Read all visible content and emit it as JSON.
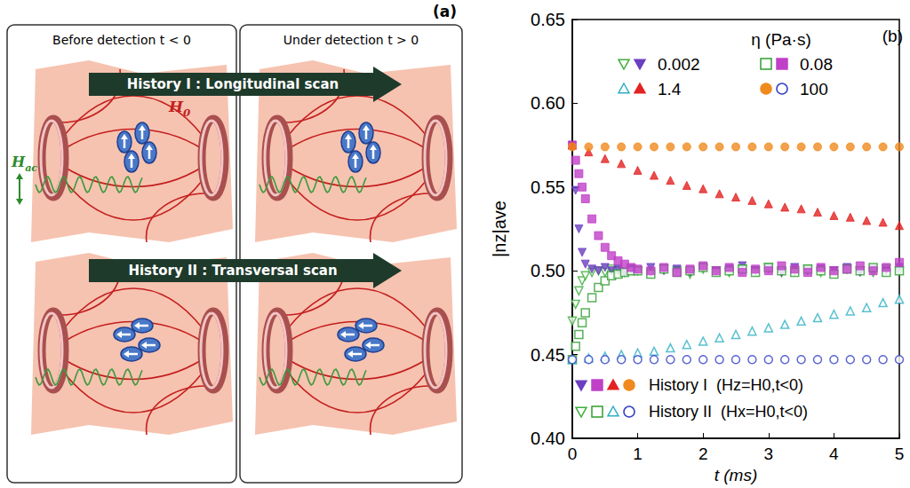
{
  "diagram": {
    "panel_label": "(a)",
    "columns": [
      "Before detection  t < 0",
      "Under detection  t > 0"
    ],
    "histories": [
      "History I : Longitudinal scan",
      "History II : Transversal scan"
    ],
    "field_labels": {
      "static": "H0",
      "ac": "Hac"
    }
  },
  "chart_data": {
    "type": "scatter",
    "panel_label": "(b)",
    "x_label": "t (ms)",
    "y_label": "|nz|ave",
    "legend_title": "η (Pa·s)",
    "xlim": [
      0,
      5
    ],
    "xticks": [
      0,
      1,
      2,
      3,
      4,
      5
    ],
    "ylim": [
      0.4,
      0.65
    ],
    "yticks": [
      {
        "value": 0.4,
        "label": "0.40"
      },
      0.45,
      {
        "value": 0.5,
        "label": "0.50"
      },
      0.55,
      {
        "value": 0.6,
        "label": "0.60"
      },
      0.65
    ],
    "grid": false,
    "groups": [
      {
        "name": "History I",
        "label": "History I  (Hz=H0,t<0)"
      },
      {
        "name": "History II",
        "label": "History II  (Hx=H0,t<0)"
      }
    ],
    "series": [
      {
        "name": "0.002",
        "group": "History II",
        "color": "#3cae3c",
        "marker": "open triangle-down",
        "x": [
          0,
          0.05,
          0.1,
          0.15,
          0.2,
          0.3,
          0.4,
          0.5,
          0.6,
          0.7,
          0.8,
          0.9,
          1,
          1.2,
          1.4,
          1.6,
          1.8,
          2,
          2.2,
          2.4,
          2.6,
          2.8,
          3,
          3.2,
          3.4,
          3.6,
          3.8,
          4,
          4.2,
          4.4,
          4.6,
          4.8,
          5
        ],
        "values": [
          0.47,
          0.48,
          0.488,
          0.494,
          0.497,
          0.499,
          0.5,
          0.499,
          0.501,
          0.5,
          0.499,
          0.501,
          0.5,
          0.499,
          0.501,
          0.5,
          0.498,
          0.501,
          0.5,
          0.499,
          0.501,
          0.5,
          0.502,
          0.499,
          0.5,
          0.501,
          0.499,
          0.5,
          0.501,
          0.5,
          0.499,
          0.501,
          0.5
        ]
      },
      {
        "name": "0.002",
        "group": "History I",
        "color": "#6a3fc0",
        "marker": "filled triangle-down",
        "x": [
          0,
          0.05,
          0.1,
          0.15,
          0.2,
          0.3,
          0.4,
          0.5,
          0.6,
          0.7,
          0.8,
          0.9,
          1,
          1.2,
          1.4,
          1.6,
          1.8,
          2,
          2.2,
          2.4,
          2.6,
          2.8,
          3,
          3.2,
          3.4,
          3.6,
          3.8,
          4,
          4.2,
          4.4,
          4.6,
          4.8,
          5
        ],
        "values": [
          0.575,
          0.548,
          0.525,
          0.511,
          0.504,
          0.501,
          0.5,
          0.502,
          0.5,
          0.501,
          0.499,
          0.501,
          0.5,
          0.502,
          0.5,
          0.501,
          0.499,
          0.502,
          0.5,
          0.501,
          0.503,
          0.5,
          0.501,
          0.499,
          0.502,
          0.5,
          0.501,
          0.5,
          0.502,
          0.499,
          0.501,
          0.5,
          0.502
        ]
      },
      {
        "name": "0.08",
        "group": "History II",
        "color": "#2f9e2f",
        "marker": "open square",
        "x": [
          0,
          0.05,
          0.1,
          0.15,
          0.2,
          0.3,
          0.4,
          0.5,
          0.6,
          0.7,
          0.8,
          0.9,
          1,
          1.2,
          1.4,
          1.6,
          1.8,
          2,
          2.2,
          2.4,
          2.6,
          2.8,
          3,
          3.2,
          3.4,
          3.6,
          3.8,
          4,
          4.2,
          4.4,
          4.6,
          4.8,
          5
        ],
        "values": [
          0.447,
          0.455,
          0.462,
          0.469,
          0.475,
          0.484,
          0.49,
          0.494,
          0.497,
          0.498,
          0.499,
          0.5,
          0.5,
          0.498,
          0.501,
          0.499,
          0.5,
          0.502,
          0.499,
          0.5,
          0.501,
          0.499,
          0.502,
          0.5,
          0.499,
          0.501,
          0.5,
          0.498,
          0.501,
          0.5,
          0.502,
          0.499,
          0.5
        ]
      },
      {
        "name": "0.08",
        "group": "History I",
        "color": "#c040c8",
        "marker": "filled square",
        "x": [
          0,
          0.05,
          0.1,
          0.15,
          0.2,
          0.3,
          0.4,
          0.5,
          0.6,
          0.7,
          0.8,
          0.9,
          1,
          1.2,
          1.4,
          1.6,
          1.8,
          2,
          2.2,
          2.4,
          2.6,
          2.8,
          3,
          3.2,
          3.4,
          3.6,
          3.8,
          4,
          4.2,
          4.4,
          4.6,
          4.8,
          5
        ],
        "values": [
          0.575,
          0.566,
          0.558,
          0.55,
          0.543,
          0.531,
          0.521,
          0.514,
          0.509,
          0.506,
          0.504,
          0.502,
          0.501,
          0.5,
          0.502,
          0.499,
          0.501,
          0.503,
          0.5,
          0.502,
          0.499,
          0.501,
          0.5,
          0.503,
          0.501,
          0.499,
          0.502,
          0.5,
          0.501,
          0.503,
          0.5,
          0.502,
          0.505
        ]
      },
      {
        "name": "1.4",
        "group": "History II",
        "color": "#2fb0c4",
        "marker": "open triangle",
        "x": [
          0,
          0.25,
          0.5,
          0.75,
          1,
          1.25,
          1.5,
          1.75,
          2,
          2.25,
          2.5,
          2.75,
          3,
          3.25,
          3.5,
          3.75,
          4,
          4.25,
          4.5,
          4.75,
          5
        ],
        "values": [
          0.447,
          0.448,
          0.449,
          0.45,
          0.451,
          0.452,
          0.454,
          0.456,
          0.458,
          0.46,
          0.462,
          0.464,
          0.466,
          0.468,
          0.47,
          0.472,
          0.474,
          0.476,
          0.478,
          0.481,
          0.483
        ]
      },
      {
        "name": "1.4",
        "group": "History I",
        "color": "#e32222",
        "marker": "filled triangle",
        "x": [
          0,
          0.25,
          0.5,
          0.75,
          1,
          1.25,
          1.5,
          1.75,
          2,
          2.25,
          2.5,
          2.75,
          3,
          3.25,
          3.5,
          3.75,
          4,
          4.25,
          4.5,
          4.75,
          5
        ],
        "values": [
          0.575,
          0.571,
          0.567,
          0.564,
          0.56,
          0.557,
          0.554,
          0.551,
          0.549,
          0.546,
          0.544,
          0.542,
          0.54,
          0.538,
          0.537,
          0.535,
          0.533,
          0.532,
          0.53,
          0.529,
          0.527
        ]
      },
      {
        "name": "100",
        "group": "History I",
        "color": "#f08a1e",
        "marker": "filled circle",
        "x": [
          0,
          0.25,
          0.5,
          0.75,
          1,
          1.25,
          1.5,
          1.75,
          2,
          2.25,
          2.5,
          2.75,
          3,
          3.25,
          3.5,
          3.75,
          4,
          4.25,
          4.5,
          4.75,
          5
        ],
        "values": [
          0.574,
          0.574,
          0.574,
          0.574,
          0.574,
          0.574,
          0.574,
          0.574,
          0.574,
          0.574,
          0.574,
          0.574,
          0.574,
          0.574,
          0.574,
          0.574,
          0.574,
          0.574,
          0.574,
          0.574,
          0.574
        ]
      },
      {
        "name": "100",
        "group": "History II",
        "color": "#3040c4",
        "marker": "open circle",
        "x": [
          0,
          0.25,
          0.5,
          0.75,
          1,
          1.25,
          1.5,
          1.75,
          2,
          2.25,
          2.5,
          2.75,
          3,
          3.25,
          3.5,
          3.75,
          4,
          4.25,
          4.5,
          4.75,
          5
        ],
        "values": [
          0.447,
          0.447,
          0.447,
          0.447,
          0.447,
          0.447,
          0.447,
          0.447,
          0.447,
          0.447,
          0.447,
          0.447,
          0.447,
          0.447,
          0.447,
          0.447,
          0.447,
          0.447,
          0.447,
          0.447,
          0.447
        ]
      }
    ]
  }
}
